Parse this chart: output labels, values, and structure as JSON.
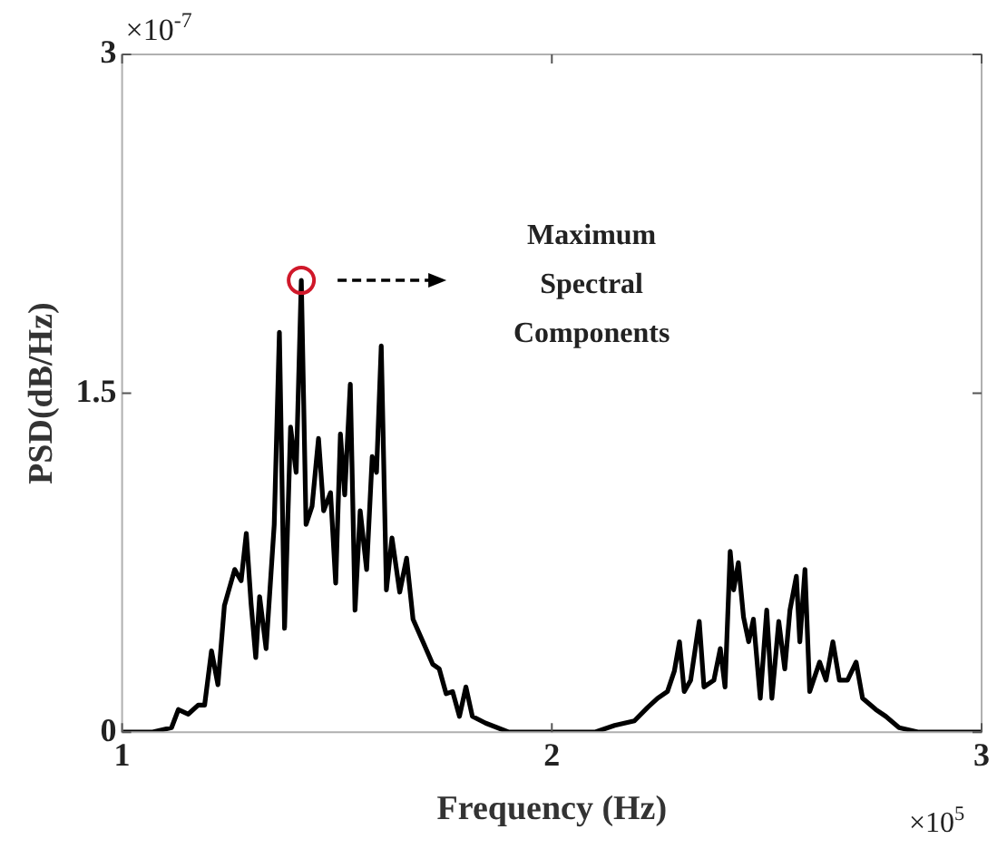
{
  "chart_data": {
    "type": "line",
    "xlabel": "Frequency (Hz)",
    "ylabel": "PSD(dB/Hz)",
    "xlim": [
      1,
      3
    ],
    "xticks": [
      1,
      2,
      3
    ],
    "ylim": [
      0,
      3
    ],
    "yticks": [
      0,
      1.5,
      3
    ],
    "marker": "none",
    "line_style": "solid",
    "annotations": [
      "×10$^{-7}$",
      "×10$^{5}$",
      "Maximum Spectral Components"
    ],
    "series": [
      {
        "color": "#000000",
        "x": [
          1.0,
          1.069,
          1.115,
          1.131,
          1.154,
          1.177,
          1.192,
          1.208,
          1.223,
          1.238,
          1.262,
          1.277,
          1.289,
          1.3,
          1.311,
          1.32,
          1.335,
          1.354,
          1.366,
          1.378,
          1.392,
          1.405,
          1.417,
          1.428,
          1.442,
          1.457,
          1.469,
          1.485,
          1.497,
          1.508,
          1.518,
          1.531,
          1.542,
          1.554,
          1.569,
          1.582,
          1.592,
          1.603,
          1.615,
          1.628,
          1.646,
          1.662,
          1.677,
          1.7,
          1.723,
          1.738,
          1.754,
          1.769,
          1.785,
          1.8,
          1.815,
          1.846,
          1.9,
          2.1,
          2.146,
          2.192,
          2.223,
          2.246,
          2.269,
          2.285,
          2.297,
          2.308,
          2.323,
          2.343,
          2.354,
          2.377,
          2.392,
          2.403,
          2.415,
          2.423,
          2.434,
          2.446,
          2.458,
          2.469,
          2.485,
          2.5,
          2.512,
          2.528,
          2.542,
          2.554,
          2.569,
          2.577,
          2.589,
          2.6,
          2.623,
          2.638,
          2.654,
          2.669,
          2.688,
          2.708,
          2.723,
          2.754,
          2.777,
          2.808,
          2.854,
          3.0
        ],
        "values": [
          0,
          0,
          0.02,
          0.1,
          0.08,
          0.12,
          0.12,
          0.36,
          0.21,
          0.56,
          0.72,
          0.67,
          0.88,
          0.57,
          0.33,
          0.6,
          0.37,
          0.92,
          1.77,
          0.46,
          1.35,
          1.15,
          2.0,
          0.92,
          1.0,
          1.3,
          0.98,
          1.06,
          0.66,
          1.32,
          1.05,
          1.54,
          0.54,
          0.98,
          0.72,
          1.22,
          1.15,
          1.71,
          0.63,
          0.86,
          0.62,
          0.77,
          0.5,
          0.4,
          0.3,
          0.28,
          0.17,
          0.18,
          0.07,
          0.2,
          0.07,
          0.04,
          0,
          0,
          0.03,
          0.05,
          0.11,
          0.15,
          0.18,
          0.27,
          0.4,
          0.18,
          0.23,
          0.49,
          0.2,
          0.23,
          0.37,
          0.2,
          0.8,
          0.63,
          0.75,
          0.51,
          0.4,
          0.5,
          0.15,
          0.54,
          0.15,
          0.49,
          0.28,
          0.54,
          0.69,
          0.4,
          0.72,
          0.18,
          0.31,
          0.23,
          0.4,
          0.23,
          0.23,
          0.31,
          0.15,
          0.1,
          0.07,
          0.02,
          0,
          0
        ]
      }
    ]
  }
}
